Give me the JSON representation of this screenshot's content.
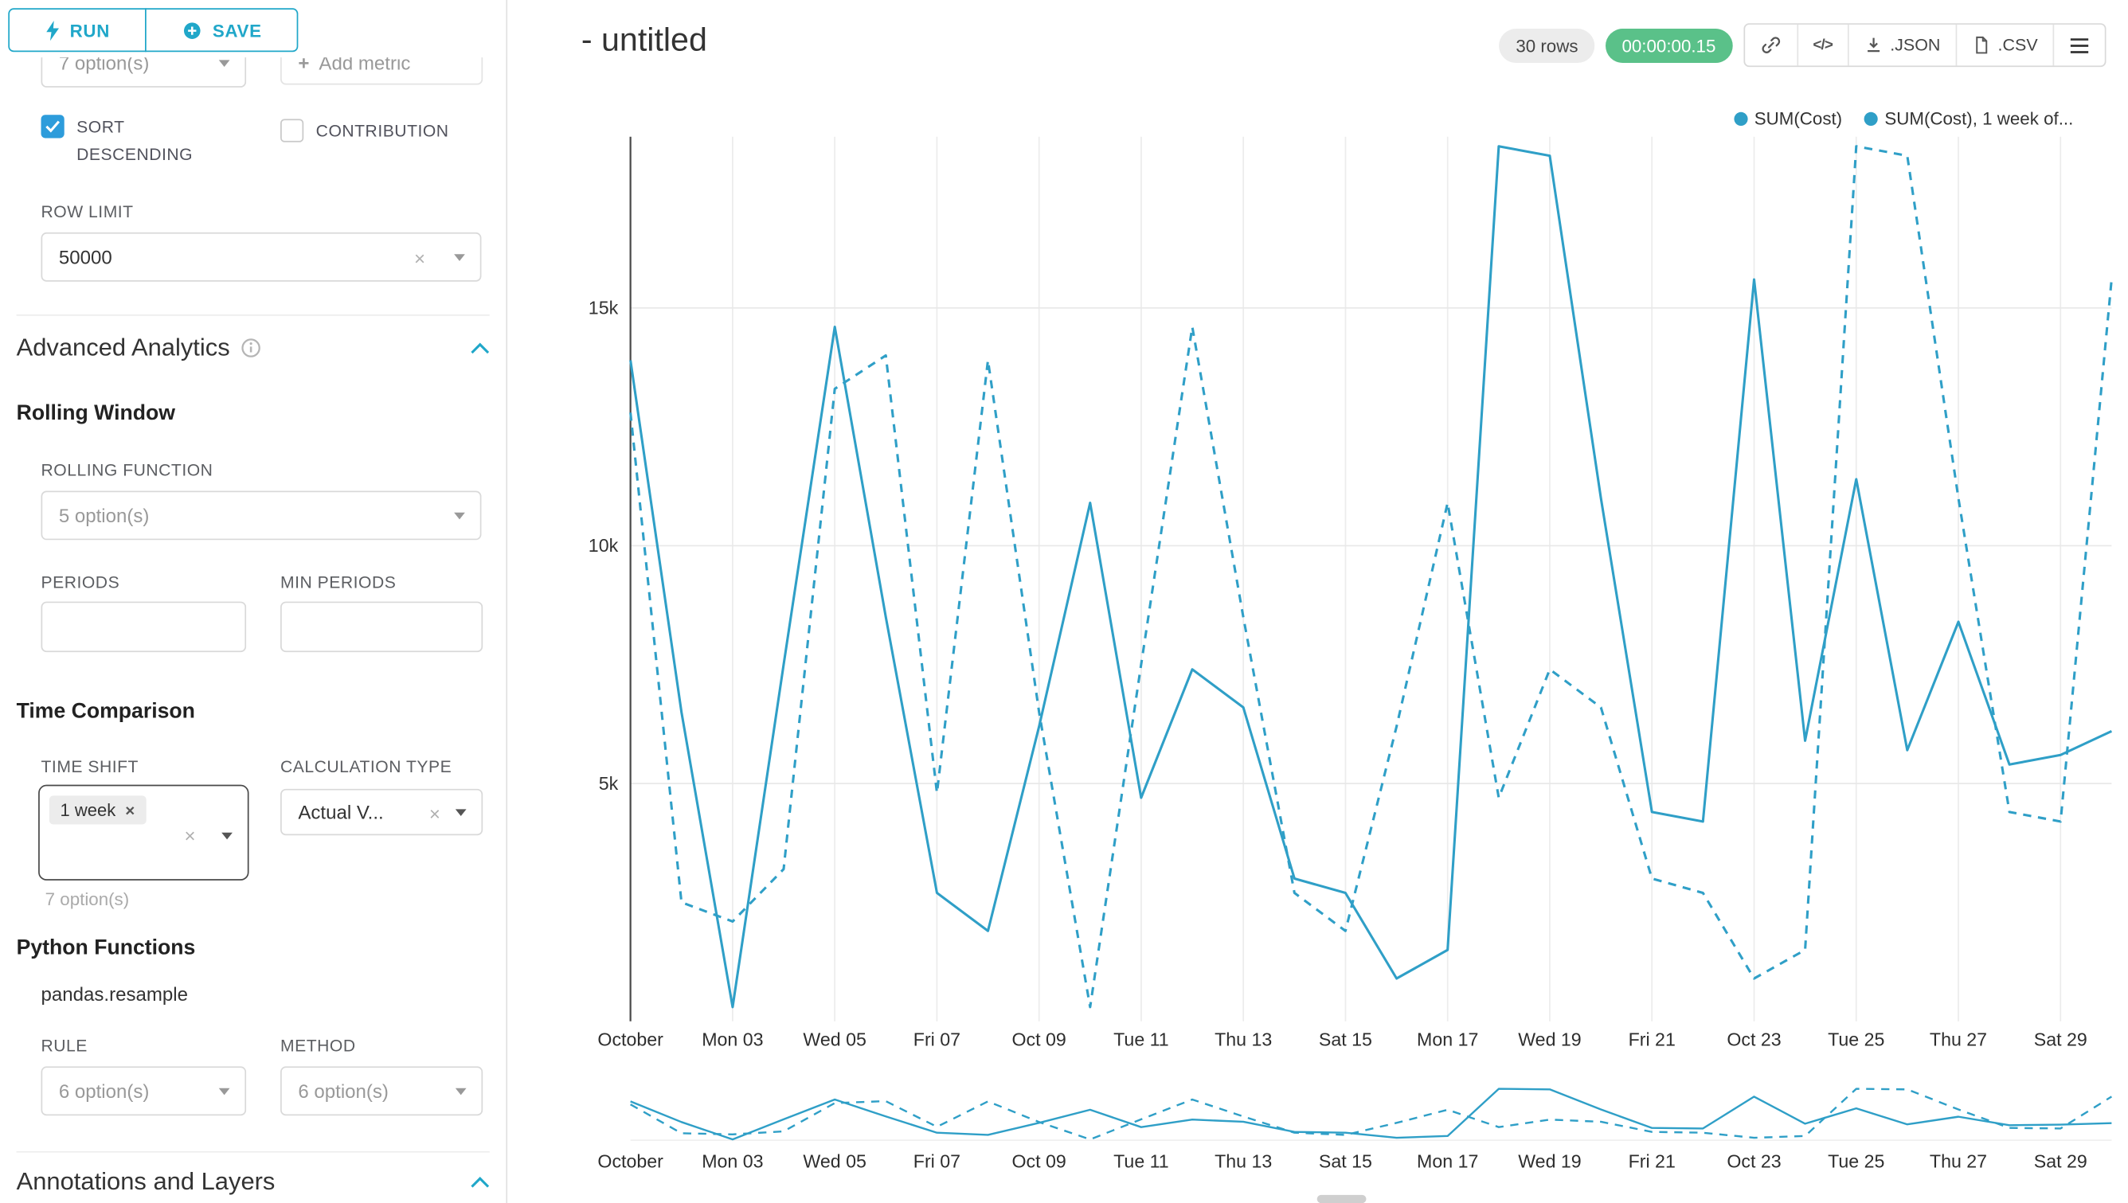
{
  "ui": {
    "accent": "#20a7c9",
    "series_color": "#2f9fc7",
    "checkbox_color": "#2d9cdb",
    "success_color": "#5ac189",
    "glyphs": {
      "plus": "+",
      "clear": "×",
      "code": "</>"
    }
  },
  "toolbar": {
    "run": "RUN",
    "save": "SAVE"
  },
  "panel": {
    "groupby_placeholder": "7 option(s)",
    "add_metric": "Add metric",
    "sort_descending": "SORT DESCENDING",
    "contribution": "CONTRIBUTION",
    "row_limit_label": "ROW LIMIT",
    "row_limit_value": "50000",
    "advanced_analytics": "Advanced Analytics",
    "rolling_window": "Rolling Window",
    "rolling_function_label": "ROLLING FUNCTION",
    "rolling_function_placeholder": "5 option(s)",
    "periods_label": "PERIODS",
    "min_periods_label": "MIN PERIODS",
    "time_comparison": "Time Comparison",
    "time_shift_label": "TIME SHIFT",
    "time_shift_tag": "1 week",
    "time_shift_hint": "7 option(s)",
    "calculation_type_label": "CALCULATION TYPE",
    "calculation_type_value": "Actual V...",
    "python_functions": "Python Functions",
    "pandas_resample": "pandas.resample",
    "rule_label": "RULE",
    "rule_placeholder": "6 option(s)",
    "method_label": "METHOD",
    "method_placeholder": "6 option(s)",
    "annotations": "Annotations and Layers"
  },
  "header": {
    "title": "- untitled",
    "rows_badge": "30 rows",
    "timer_badge": "00:00:00.15",
    "json_label": ".JSON",
    "csv_label": ".CSV"
  },
  "chart_data": {
    "type": "line",
    "title": "- untitled",
    "x_tick_labels": [
      "October",
      "Mon 03",
      "Wed 05",
      "Fri 07",
      "Oct 09",
      "Tue 11",
      "Thu 13",
      "Sat 15",
      "Mon 17",
      "Wed 19",
      "Fri 21",
      "Oct 23",
      "Tue 25",
      "Thu 27",
      "Sat 29"
    ],
    "x_days": 30,
    "ylim": [
      0,
      18600
    ],
    "ytick_values": [
      5000,
      10000,
      15000
    ],
    "ytick_labels": [
      "5k",
      "10k",
      "15k"
    ],
    "grid": true,
    "legend_position": "top-right",
    "legend": [
      "SUM(Cost)",
      "SUM(Cost), 1 week of..."
    ],
    "series": [
      {
        "name": "SUM(Cost)",
        "line_style": "solid",
        "values": [
          13900,
          6500,
          300,
          7500,
          14600,
          8500,
          2700,
          1900,
          6200,
          10900,
          4700,
          7400,
          6600,
          3000,
          2700,
          900,
          1500,
          18400,
          18200,
          11000,
          4400,
          4200,
          15600,
          5900,
          11400,
          5700,
          8400,
          5400,
          5600,
          6100
        ]
      },
      {
        "name": "SUM(Cost), 1 week of...",
        "line_style": "dashed",
        "values": [
          12800,
          2500,
          2100,
          3200,
          13300,
          14000,
          4800,
          13900,
          6500,
          300,
          7500,
          14600,
          8500,
          2700,
          1900,
          6200,
          10900,
          4700,
          7400,
          6600,
          3000,
          2700,
          900,
          1500,
          18400,
          18200,
          11000,
          4400,
          4200,
          15600
        ]
      }
    ]
  }
}
